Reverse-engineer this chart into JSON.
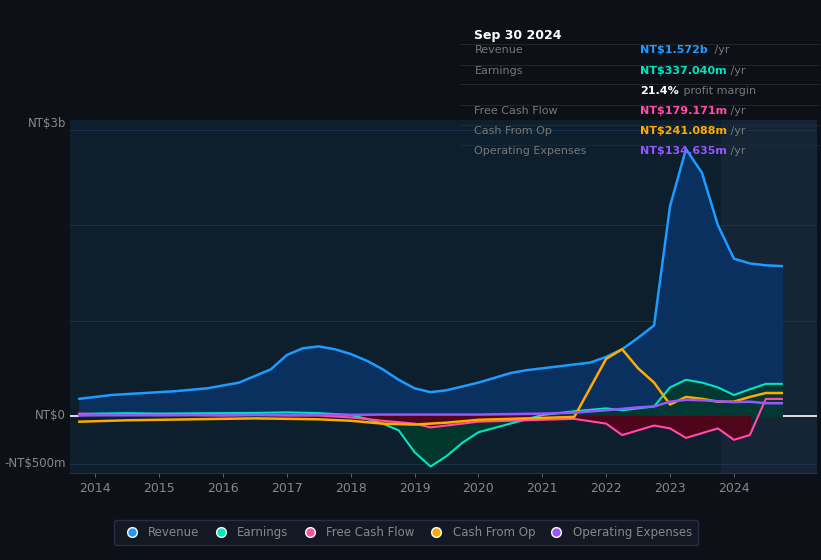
{
  "background_color": "#0d1117",
  "plot_bg_color": "#0d1f2d",
  "grid_color": "#1e3550",
  "text_color": "#888888",
  "ylim": [
    -600,
    3100
  ],
  "xlim": [
    2013.6,
    2025.3
  ],
  "xticks": [
    2014,
    2015,
    2016,
    2017,
    2018,
    2019,
    2020,
    2021,
    2022,
    2023,
    2024
  ],
  "series": {
    "revenue": {
      "color": "#1e9bff",
      "fill_color": "#0a3060",
      "label": "Revenue",
      "values_x": [
        2013.75,
        2014.0,
        2014.25,
        2014.75,
        2015.25,
        2015.75,
        2016.25,
        2016.75,
        2017.0,
        2017.25,
        2017.5,
        2017.75,
        2018.0,
        2018.25,
        2018.5,
        2018.75,
        2019.0,
        2019.25,
        2019.5,
        2019.75,
        2020.0,
        2020.25,
        2020.5,
        2020.75,
        2021.0,
        2021.25,
        2021.5,
        2021.75,
        2022.0,
        2022.25,
        2022.5,
        2022.75,
        2023.0,
        2023.25,
        2023.5,
        2023.75,
        2024.0,
        2024.25,
        2024.5,
        2024.75
      ],
      "values_y": [
        180,
        200,
        220,
        240,
        260,
        290,
        350,
        490,
        640,
        710,
        730,
        700,
        650,
        580,
        490,
        380,
        290,
        250,
        270,
        310,
        350,
        400,
        450,
        480,
        500,
        520,
        540,
        560,
        620,
        700,
        820,
        950,
        2200,
        2800,
        2550,
        2000,
        1650,
        1600,
        1580,
        1572
      ]
    },
    "earnings": {
      "color": "#00e5c0",
      "fill_color": "#003a2e",
      "label": "Earnings",
      "values_x": [
        2013.75,
        2014.0,
        2014.5,
        2015.0,
        2015.5,
        2016.0,
        2016.5,
        2017.0,
        2017.5,
        2018.0,
        2018.25,
        2018.5,
        2018.75,
        2019.0,
        2019.25,
        2019.5,
        2019.75,
        2020.0,
        2020.5,
        2021.0,
        2021.5,
        2022.0,
        2022.25,
        2022.5,
        2022.75,
        2023.0,
        2023.25,
        2023.5,
        2023.75,
        2024.0,
        2024.25,
        2024.5,
        2024.75
      ],
      "values_y": [
        20,
        25,
        30,
        25,
        28,
        30,
        32,
        38,
        30,
        10,
        -30,
        -80,
        -150,
        -380,
        -530,
        -420,
        -280,
        -170,
        -80,
        10,
        50,
        80,
        60,
        80,
        100,
        300,
        380,
        350,
        300,
        220,
        280,
        337,
        337
      ]
    },
    "free_cash_flow": {
      "color": "#ff4da6",
      "fill_color": "#5a0020",
      "label": "Free Cash Flow",
      "values_x": [
        2013.75,
        2014.0,
        2014.5,
        2015.0,
        2015.5,
        2016.0,
        2016.5,
        2017.0,
        2017.5,
        2018.0,
        2018.5,
        2019.0,
        2019.25,
        2019.5,
        2019.75,
        2020.0,
        2020.5,
        2021.0,
        2021.5,
        2022.0,
        2022.25,
        2022.5,
        2022.75,
        2023.0,
        2023.25,
        2023.5,
        2023.75,
        2024.0,
        2024.25,
        2024.5,
        2024.75
      ],
      "values_y": [
        25,
        20,
        15,
        10,
        10,
        5,
        10,
        5,
        5,
        -15,
        -50,
        -80,
        -120,
        -100,
        -80,
        -60,
        -50,
        -40,
        -30,
        -80,
        -200,
        -150,
        -100,
        -130,
        -230,
        -180,
        -130,
        -250,
        -200,
        179,
        179
      ]
    },
    "cash_from_op": {
      "color": "#ffaa00",
      "label": "Cash From Op",
      "values_x": [
        2013.75,
        2014.0,
        2014.5,
        2015.0,
        2015.5,
        2016.0,
        2016.5,
        2017.0,
        2017.5,
        2018.0,
        2018.5,
        2019.0,
        2019.5,
        2020.0,
        2020.5,
        2021.0,
        2021.5,
        2022.0,
        2022.25,
        2022.5,
        2022.75,
        2023.0,
        2023.25,
        2023.5,
        2023.75,
        2024.0,
        2024.25,
        2024.5,
        2024.75
      ],
      "values_y": [
        -60,
        -55,
        -45,
        -40,
        -35,
        -30,
        -25,
        -30,
        -35,
        -50,
        -80,
        -90,
        -70,
        -40,
        -30,
        -20,
        -10,
        600,
        700,
        500,
        350,
        120,
        200,
        180,
        150,
        150,
        200,
        241,
        241
      ]
    },
    "operating_expenses": {
      "color": "#9955ff",
      "label": "Operating Expenses",
      "values_x": [
        2013.75,
        2014.0,
        2014.5,
        2015.0,
        2015.5,
        2016.0,
        2016.5,
        2017.0,
        2017.5,
        2018.0,
        2018.5,
        2019.0,
        2019.5,
        2020.0,
        2020.5,
        2021.0,
        2021.5,
        2022.0,
        2022.5,
        2022.75,
        2023.0,
        2023.25,
        2023.5,
        2023.75,
        2024.0,
        2024.25,
        2024.5,
        2024.75
      ],
      "values_y": [
        5,
        8,
        8,
        8,
        10,
        10,
        12,
        12,
        12,
        12,
        15,
        15,
        15,
        15,
        20,
        25,
        35,
        60,
        90,
        100,
        150,
        170,
        165,
        155,
        145,
        150,
        134,
        134
      ]
    }
  },
  "info_box": {
    "title": "Sep 30 2024",
    "rows": [
      {
        "label": "Revenue",
        "value": "NT$1.572b",
        "suffix": " /yr",
        "value_color": "#1e9bff"
      },
      {
        "label": "Earnings",
        "value": "NT$337.040m",
        "suffix": " /yr",
        "value_color": "#00e5c0"
      },
      {
        "label": "",
        "value": "21.4%",
        "suffix": " profit margin",
        "value_color": "#ffffff"
      },
      {
        "label": "Free Cash Flow",
        "value": "NT$179.171m",
        "suffix": " /yr",
        "value_color": "#ff4da6"
      },
      {
        "label": "Cash From Op",
        "value": "NT$241.088m",
        "suffix": " /yr",
        "value_color": "#ffaa00"
      },
      {
        "label": "Operating Expenses",
        "value": "NT$134.635m",
        "suffix": " /yr",
        "value_color": "#9955ff"
      }
    ]
  },
  "legend": [
    {
      "label": "Revenue",
      "color": "#1e9bff"
    },
    {
      "label": "Earnings",
      "color": "#00e5c0"
    },
    {
      "label": "Free Cash Flow",
      "color": "#ff4da6"
    },
    {
      "label": "Cash From Op",
      "color": "#ffaa00"
    },
    {
      "label": "Operating Expenses",
      "color": "#9955ff"
    }
  ],
  "shaded_region_start": 2023.8,
  "shaded_region_color": "#152535"
}
